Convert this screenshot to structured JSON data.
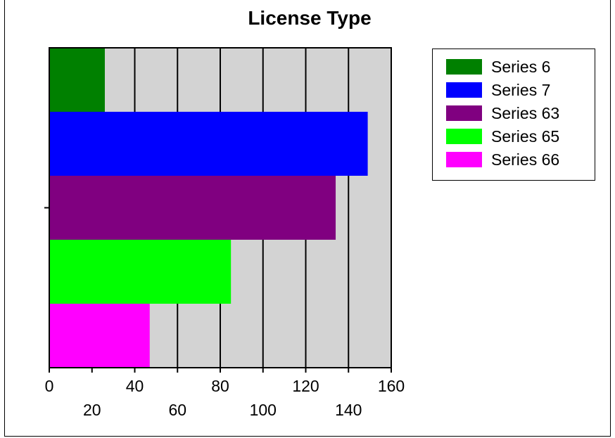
{
  "chart_data": {
    "type": "bar",
    "orientation": "horizontal",
    "title": "License Type",
    "categories": [
      ""
    ],
    "series": [
      {
        "name": "Series 6",
        "values": [
          26
        ],
        "color": "#008000"
      },
      {
        "name": "Series 7",
        "values": [
          149
        ],
        "color": "#0000FF"
      },
      {
        "name": "Series 63",
        "values": [
          134
        ],
        "color": "#800080"
      },
      {
        "name": "Series 65",
        "values": [
          85
        ],
        "color": "#00FF00"
      },
      {
        "name": "Series 66",
        "values": [
          47
        ],
        "color": "#FF00FF"
      }
    ],
    "xlim": [
      0,
      160
    ],
    "x_ticks": [
      "0",
      "20",
      "40",
      "60",
      "80",
      "100",
      "120",
      "140",
      "160"
    ],
    "grid": true,
    "plot_background": "#D3D3D3",
    "legend_position": "right"
  }
}
